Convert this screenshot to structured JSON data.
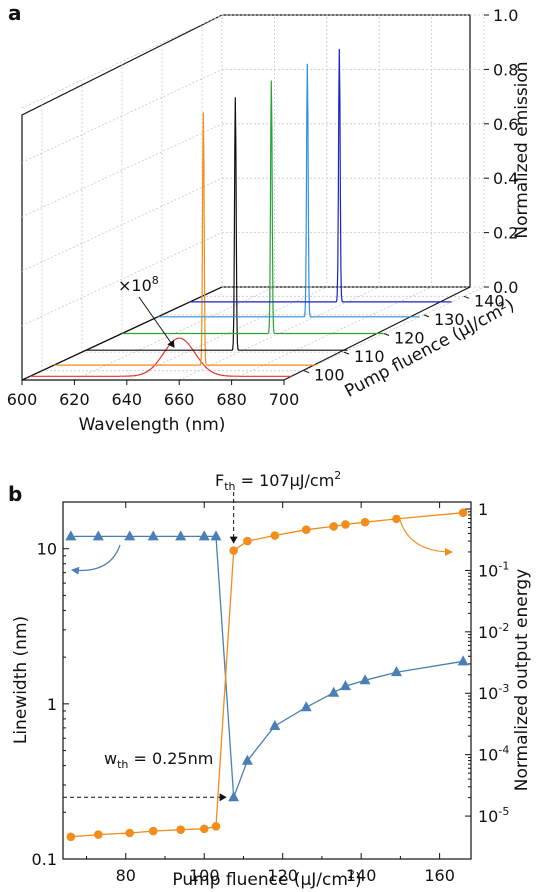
{
  "panel_a": {
    "label": "a",
    "annotation": "×10",
    "annotation_sup": "8",
    "chart_data": {
      "type": "line",
      "xlabel": "Wavelength (nm)",
      "ylabel": "Pump fluence (μJ/cm²)",
      "zlabel": "Normalized emission",
      "xlim": [
        600,
        700
      ],
      "x_ticks": [
        600,
        620,
        640,
        660,
        680,
        700
      ],
      "y_ticks": [
        100,
        110,
        120,
        130,
        140
      ],
      "z_ticks": [
        0.0,
        0.2,
        0.4,
        0.6,
        0.8,
        1.0
      ],
      "z_tick_labels": [
        "0.0",
        "0.2",
        "0.4",
        "0.6",
        "0.8",
        "1.0"
      ],
      "series": [
        {
          "color": "#e8352e",
          "peak_nm": 657,
          "peak": 0.05,
          "width_nm": 6
        },
        {
          "color": "#f28c1b",
          "peak_nm": 657,
          "peak": 1.0,
          "width_nm": 0.3
        },
        {
          "color": "#111111",
          "peak_nm": 657,
          "peak": 1.0,
          "width_nm": 0.3
        },
        {
          "color": "#2aa23a",
          "peak_nm": 657,
          "peak": 1.0,
          "width_nm": 0.3
        },
        {
          "color": "#2f8fe0",
          "peak_nm": 657,
          "peak": 1.0,
          "width_nm": 0.3
        },
        {
          "color": "#1a22c8",
          "peak_nm": 657,
          "peak": 1.0,
          "width_nm": 0.3
        }
      ]
    }
  },
  "panel_b": {
    "label": "b",
    "fth_main": "F",
    "fth_sub": "th",
    "fth_rest": " = 107μJ/cm",
    "fth_sup": "2",
    "wth_main": "w",
    "wth_sub": "th",
    "wth_rest": " = 0.25nm",
    "chart_data": {
      "type": "line",
      "xlabel": "Pump fluence (μJ/cm²)",
      "ylabel": "Linewidth (nm)",
      "y2label": "Normalized output energy",
      "xlim": [
        64,
        168
      ],
      "x_ticks": [
        80,
        100,
        120,
        140,
        160
      ],
      "ylim": [
        0.1,
        20
      ],
      "y_ticks": [
        0.1,
        1,
        10
      ],
      "y_tick_labels": [
        "0.1",
        "1",
        "10"
      ],
      "y2lim": [
        2e-06,
        1.3
      ],
      "y2_ticks": [
        1,
        0.1,
        0.01,
        0.001,
        0.0001,
        1e-05
      ],
      "y2_tick_labels": [
        {
          "base": "1",
          "exp": ""
        },
        {
          "base": "10",
          "exp": "-1"
        },
        {
          "base": "10",
          "exp": "-2"
        },
        {
          "base": "10",
          "exp": "-3"
        },
        {
          "base": "10",
          "exp": "-4"
        },
        {
          "base": "10",
          "exp": "-5"
        }
      ],
      "x_axis_label_sup": "2",
      "series": [
        {
          "name": "Linewidth",
          "axis": "left",
          "color": "#4a7fb5",
          "marker": "triangle",
          "x": [
            66,
            73,
            81,
            87,
            94,
            100,
            103,
            107.5,
            111,
            118,
            126,
            133,
            136,
            141,
            149,
            166
          ],
          "y": [
            12,
            12,
            12,
            12,
            12,
            12,
            12,
            0.25,
            0.43,
            0.72,
            0.95,
            1.18,
            1.3,
            1.42,
            1.6,
            1.88
          ]
        },
        {
          "name": "Output energy",
          "axis": "right",
          "color": "#f28c1b",
          "marker": "circle",
          "x": [
            66,
            73,
            81,
            87,
            94,
            100,
            103,
            107.5,
            111,
            118,
            126,
            133,
            136,
            141,
            149,
            166
          ],
          "y": [
            4.6e-06,
            5e-06,
            5.3e-06,
            5.7e-06,
            6e-06,
            6.2e-06,
            6.8e-06,
            0.21,
            0.3,
            0.37,
            0.46,
            0.52,
            0.56,
            0.61,
            0.69,
            0.87
          ]
        }
      ]
    }
  }
}
